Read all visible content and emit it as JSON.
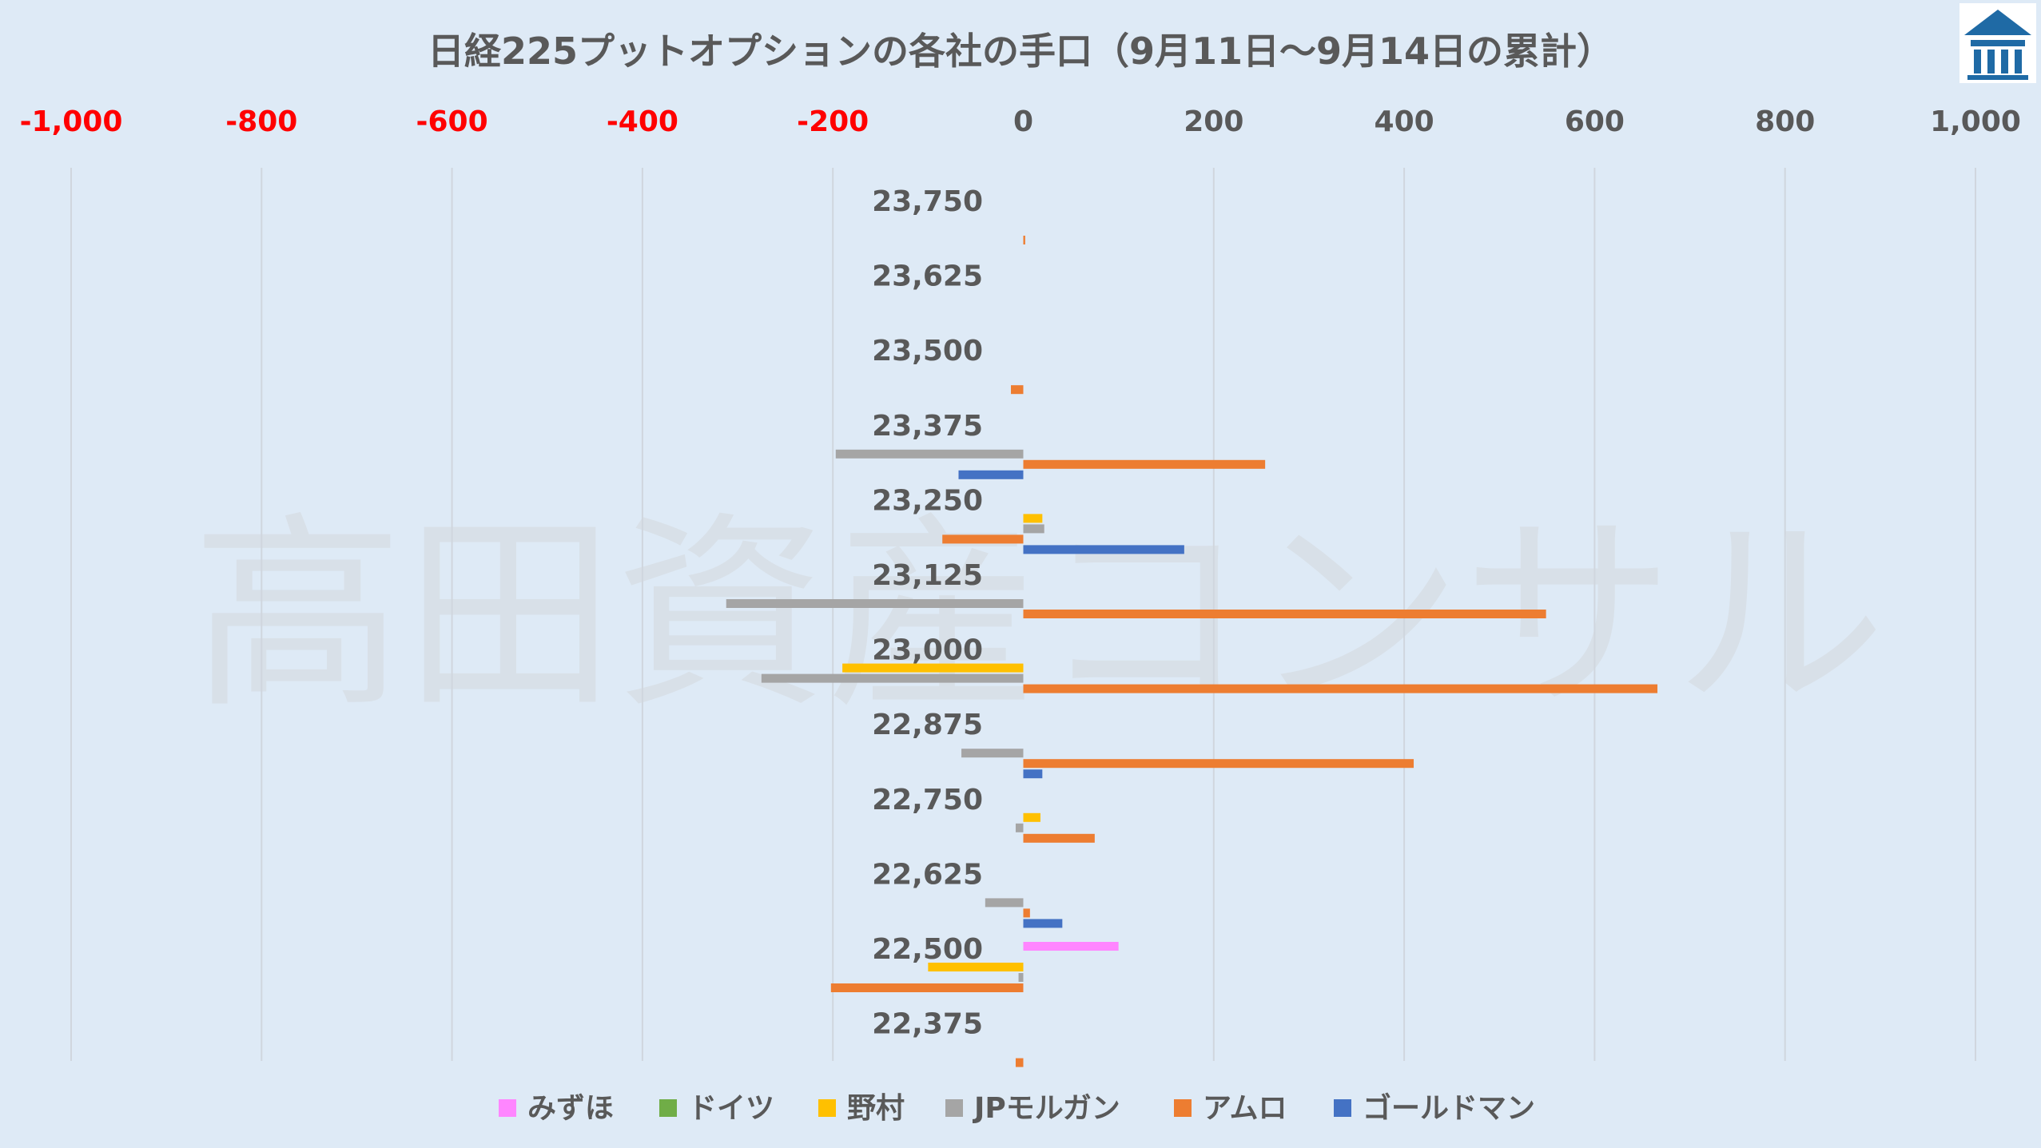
{
  "chart_data": {
    "type": "bar",
    "orientation": "horizontal",
    "title": "日経225プットオプションの各社の手口（9月11日～9月14日の累計）",
    "watermark": "高田資産コンサル",
    "xlim": [
      -1000,
      1000
    ],
    "xticks": [
      -1000,
      -800,
      -600,
      -400,
      -200,
      0,
      200,
      400,
      600,
      800,
      1000
    ],
    "xtick_labels": [
      "-1,000",
      "-800",
      "-600",
      "-400",
      "-200",
      "0",
      "200",
      "400",
      "600",
      "800",
      "1,000"
    ],
    "negative_tick_color": "#ff0000",
    "positive_tick_color": "#595959",
    "grid": true,
    "legend_position": "bottom",
    "categories": [
      "23,750",
      "23,625",
      "23,500",
      "23,375",
      "23,250",
      "23,125",
      "23,000",
      "22,875",
      "22,750",
      "22,625",
      "22,500",
      "22,375"
    ],
    "series": [
      {
        "name": "みずほ",
        "color": "#ff86ff",
        "values": [
          0,
          0,
          0,
          0,
          0,
          0,
          0,
          0,
          0,
          0,
          100,
          0
        ]
      },
      {
        "name": "ドイツ",
        "color": "#70ad47",
        "values": [
          0,
          0,
          0,
          0,
          0,
          0,
          0,
          0,
          0,
          0,
          0,
          0
        ]
      },
      {
        "name": "野村",
        "color": "#ffc000",
        "values": [
          0,
          0,
          0,
          0,
          20,
          0,
          -190,
          0,
          18,
          0,
          -100,
          0
        ]
      },
      {
        "name": "JPモルガン",
        "color": "#a5a5a5",
        "values": [
          0,
          0,
          0,
          -197,
          22,
          -312,
          -275,
          -65,
          -8,
          -40,
          -5,
          0
        ]
      },
      {
        "name": "アムロ",
        "color": "#ed7d31",
        "values": [
          2,
          0,
          -13,
          254,
          -85,
          549,
          666,
          410,
          75,
          7,
          -202,
          -8
        ]
      },
      {
        "name": "ゴールドマン",
        "color": "#4472c4",
        "values": [
          0,
          0,
          0,
          -68,
          169,
          0,
          0,
          20,
          0,
          41,
          0,
          0
        ]
      }
    ]
  },
  "logo": {
    "icon": "company-logo-icon",
    "color": "#1f6aa5"
  }
}
